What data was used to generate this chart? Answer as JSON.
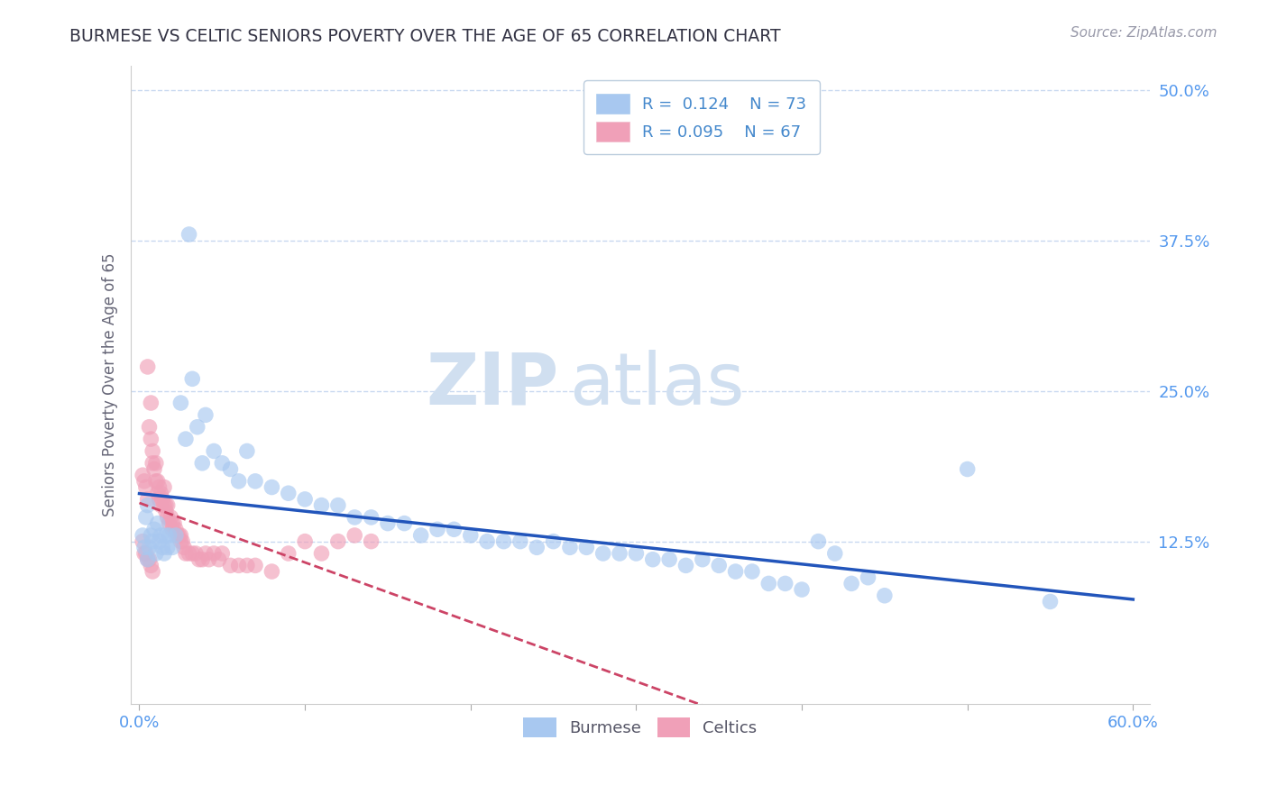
{
  "title": "BURMESE VS CELTIC SENIORS POVERTY OVER THE AGE OF 65 CORRELATION CHART",
  "source": "Source: ZipAtlas.com",
  "ylabel": "Seniors Poverty Over the Age of 65",
  "xlim": [
    -0.005,
    0.61
  ],
  "ylim": [
    -0.01,
    0.52
  ],
  "xticks": [
    0.0,
    0.6
  ],
  "xticklabels": [
    "0.0%",
    "60.0%"
  ],
  "yticks": [
    0.0,
    0.125,
    0.25,
    0.375,
    0.5
  ],
  "yticklabels": [
    "",
    "12.5%",
    "25.0%",
    "37.5%",
    "50.0%"
  ],
  "burmese_R": 0.124,
  "burmese_N": 73,
  "celtics_R": 0.095,
  "celtics_N": 67,
  "burmese_color": "#a8c8f0",
  "celtics_color": "#f0a0b8",
  "burmese_line_color": "#2255bb",
  "celtics_line_color": "#cc4466",
  "background_color": "#ffffff",
  "grid_color": "#c8d8f0",
  "title_color": "#333344",
  "axis_label_color": "#666677",
  "tick_color": "#5599ee",
  "watermark_zip": "ZIP",
  "watermark_atlas": "atlas",
  "watermark_color": "#dde8f5",
  "burmese_x": [
    0.002,
    0.003,
    0.004,
    0.005,
    0.005,
    0.006,
    0.007,
    0.008,
    0.009,
    0.01,
    0.011,
    0.012,
    0.013,
    0.014,
    0.015,
    0.016,
    0.017,
    0.018,
    0.02,
    0.022,
    0.025,
    0.028,
    0.03,
    0.032,
    0.035,
    0.038,
    0.04,
    0.045,
    0.05,
    0.055,
    0.06,
    0.065,
    0.07,
    0.08,
    0.09,
    0.1,
    0.11,
    0.12,
    0.13,
    0.14,
    0.15,
    0.16,
    0.17,
    0.18,
    0.19,
    0.2,
    0.21,
    0.22,
    0.23,
    0.24,
    0.25,
    0.26,
    0.27,
    0.28,
    0.29,
    0.3,
    0.31,
    0.32,
    0.33,
    0.34,
    0.35,
    0.36,
    0.37,
    0.38,
    0.39,
    0.4,
    0.41,
    0.42,
    0.43,
    0.44,
    0.45,
    0.5,
    0.55
  ],
  "burmese_y": [
    0.13,
    0.12,
    0.145,
    0.11,
    0.155,
    0.12,
    0.13,
    0.125,
    0.135,
    0.115,
    0.14,
    0.125,
    0.13,
    0.12,
    0.115,
    0.13,
    0.12,
    0.13,
    0.12,
    0.13,
    0.24,
    0.21,
    0.38,
    0.26,
    0.22,
    0.19,
    0.23,
    0.2,
    0.19,
    0.185,
    0.175,
    0.2,
    0.175,
    0.17,
    0.165,
    0.16,
    0.155,
    0.155,
    0.145,
    0.145,
    0.14,
    0.14,
    0.13,
    0.135,
    0.135,
    0.13,
    0.125,
    0.125,
    0.125,
    0.12,
    0.125,
    0.12,
    0.12,
    0.115,
    0.115,
    0.115,
    0.11,
    0.11,
    0.105,
    0.11,
    0.105,
    0.1,
    0.1,
    0.09,
    0.09,
    0.085,
    0.125,
    0.115,
    0.09,
    0.095,
    0.08,
    0.185,
    0.075
  ],
  "celtics_x": [
    0.002,
    0.003,
    0.004,
    0.005,
    0.005,
    0.006,
    0.007,
    0.007,
    0.008,
    0.008,
    0.009,
    0.01,
    0.01,
    0.011,
    0.011,
    0.012,
    0.012,
    0.013,
    0.013,
    0.014,
    0.015,
    0.015,
    0.016,
    0.016,
    0.017,
    0.017,
    0.018,
    0.019,
    0.02,
    0.02,
    0.021,
    0.022,
    0.023,
    0.024,
    0.025,
    0.025,
    0.026,
    0.027,
    0.028,
    0.03,
    0.032,
    0.034,
    0.036,
    0.038,
    0.04,
    0.042,
    0.045,
    0.048,
    0.05,
    0.055,
    0.06,
    0.065,
    0.07,
    0.08,
    0.09,
    0.1,
    0.11,
    0.12,
    0.13,
    0.14,
    0.002,
    0.003,
    0.004,
    0.005,
    0.006,
    0.007,
    0.008
  ],
  "celtics_y": [
    0.18,
    0.175,
    0.17,
    0.27,
    0.16,
    0.22,
    0.21,
    0.24,
    0.2,
    0.19,
    0.185,
    0.175,
    0.19,
    0.165,
    0.175,
    0.16,
    0.17,
    0.155,
    0.165,
    0.16,
    0.155,
    0.17,
    0.15,
    0.155,
    0.145,
    0.155,
    0.14,
    0.145,
    0.135,
    0.14,
    0.14,
    0.135,
    0.13,
    0.13,
    0.125,
    0.13,
    0.125,
    0.12,
    0.115,
    0.115,
    0.115,
    0.115,
    0.11,
    0.11,
    0.115,
    0.11,
    0.115,
    0.11,
    0.115,
    0.105,
    0.105,
    0.105,
    0.105,
    0.1,
    0.115,
    0.125,
    0.115,
    0.125,
    0.13,
    0.125,
    0.125,
    0.115,
    0.115,
    0.11,
    0.11,
    0.105,
    0.1
  ]
}
